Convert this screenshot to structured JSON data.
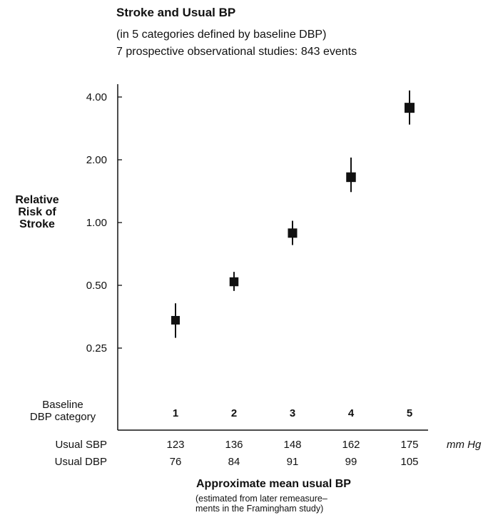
{
  "chart_data": {
    "type": "scatter",
    "title": "Stroke and Usual BP",
    "subtitle": [
      "(in 5 categories defined by baseline DBP)",
      "7 prospective observational studies: 843 events"
    ],
    "ylabel_lines": [
      "Relative",
      "Risk of",
      "Stroke"
    ],
    "y_scale": "log",
    "y_ticks": [
      0.25,
      0.5,
      1.0,
      2.0,
      4.0
    ],
    "y_tick_labels": [
      "0.25",
      "0.50",
      "1.00",
      "2.00",
      "4.00"
    ],
    "ylim": [
      0.18,
      4.6
    ],
    "categories": [
      "1",
      "2",
      "3",
      "4",
      "5"
    ],
    "category_row_label": [
      "Baseline",
      "DBP category"
    ],
    "usual_sbp_label": "Usual SBP",
    "usual_dbp_label": "Usual DBP",
    "usual_sbp": [
      "123",
      "136",
      "148",
      "162",
      "175"
    ],
    "usual_dbp": [
      "76",
      "84",
      "91",
      "99",
      "105"
    ],
    "unit": "mm Hg",
    "xlabel": "Approximate mean usual BP",
    "x_note": [
      "(estimated from later remeasure–",
      "ments in the Framingham study)"
    ],
    "series": [
      {
        "values": [
          0.34,
          0.52,
          0.89,
          1.65,
          3.55
        ],
        "ci_low": [
          0.28,
          0.47,
          0.78,
          1.4,
          2.95
        ],
        "ci_high": [
          0.41,
          0.58,
          1.02,
          2.05,
          4.3
        ]
      }
    ]
  }
}
